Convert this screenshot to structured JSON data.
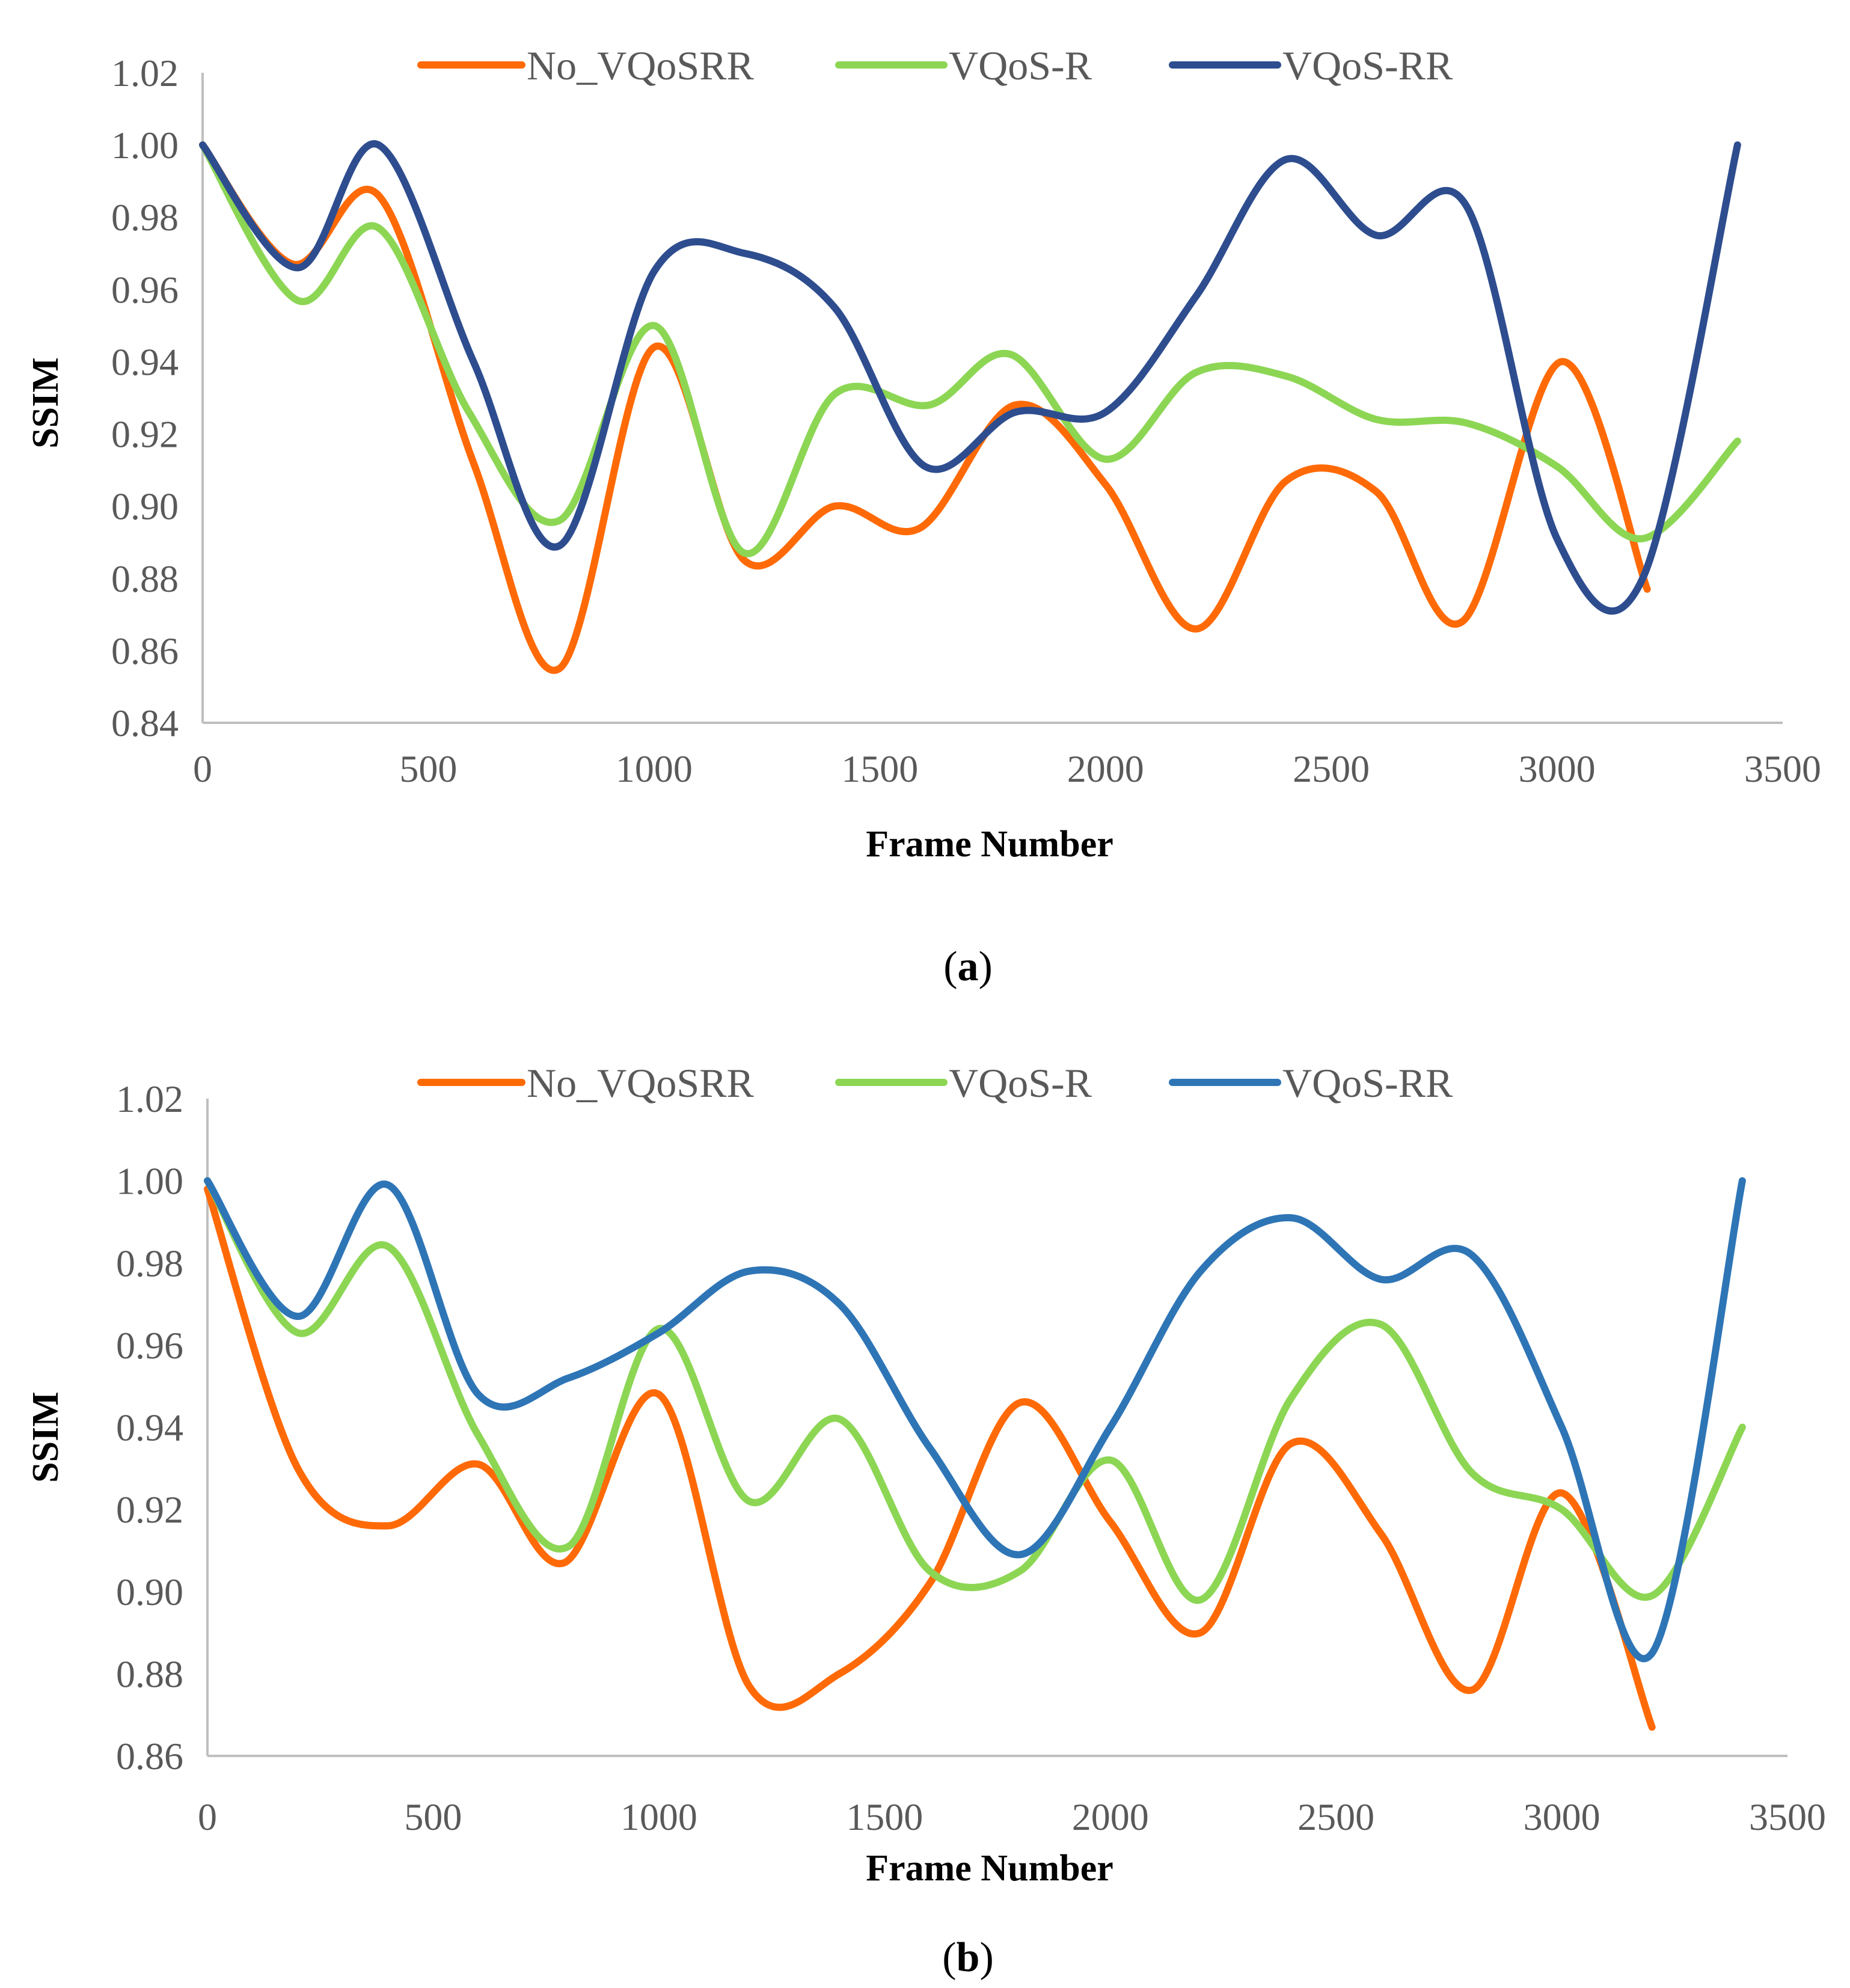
{
  "figure": {
    "caption_a": "a",
    "caption_b": "b"
  },
  "chart_data": [
    {
      "id": "a",
      "type": "line",
      "title": "",
      "xlabel": "Frame Number",
      "ylabel": "SSIM",
      "xlim": [
        0,
        3500
      ],
      "ylim": [
        0.84,
        1.02
      ],
      "xticks": [
        0,
        500,
        1000,
        1500,
        2000,
        2500,
        3000,
        3500
      ],
      "yticks": [
        0.84,
        0.86,
        0.88,
        0.9,
        0.92,
        0.94,
        0.96,
        0.98,
        1.0,
        1.02
      ],
      "ytick_labels": [
        "0.84",
        "0.86",
        "0.88",
        "0.90",
        "0.92",
        "0.94",
        "0.96",
        "0.98",
        "1.00",
        "1.02"
      ],
      "legend_position": "top",
      "grid": false,
      "series": [
        {
          "name": "No_VQoSRR",
          "color": "#FF6A06",
          "x": [
            0,
            200,
            390,
            600,
            790,
            1000,
            1200,
            1400,
            1590,
            1800,
            2000,
            2200,
            2400,
            2600,
            2790,
            3010,
            3200
          ],
          "y": [
            1.0,
            0.967,
            0.986,
            0.912,
            0.855,
            0.944,
            0.885,
            0.9,
            0.894,
            0.928,
            0.906,
            0.866,
            0.907,
            0.904,
            0.868,
            0.94,
            0.877
          ]
        },
        {
          "name": "VQoS-R",
          "color": "#8CD654",
          "x": [
            0,
            210,
            390,
            590,
            790,
            1000,
            1200,
            1400,
            1610,
            1790,
            2000,
            2200,
            2400,
            2600,
            2800,
            3000,
            3190,
            3400
          ],
          "y": [
            1.0,
            0.957,
            0.977,
            0.926,
            0.896,
            0.95,
            0.887,
            0.931,
            0.928,
            0.942,
            0.913,
            0.937,
            0.936,
            0.924,
            0.923,
            0.911,
            0.891,
            0.918
          ]
        },
        {
          "name": "VQoS-RR",
          "color": "#2E4D8F",
          "x": [
            0,
            210,
            390,
            600,
            790,
            1000,
            1200,
            1400,
            1600,
            1800,
            2000,
            2200,
            2400,
            2600,
            2800,
            3000,
            3190,
            3400
          ],
          "y": [
            1.0,
            0.966,
            1.0,
            0.94,
            0.889,
            0.965,
            0.97,
            0.955,
            0.911,
            0.926,
            0.926,
            0.958,
            0.996,
            0.975,
            0.983,
            0.891,
            0.88,
            1.0
          ]
        }
      ]
    },
    {
      "id": "b",
      "type": "line",
      "title": "",
      "xlabel": "Frame Number",
      "ylabel": "SSIM",
      "xlim": [
        0,
        3500
      ],
      "ylim": [
        0.86,
        1.02
      ],
      "xticks": [
        0,
        500,
        1000,
        1500,
        2000,
        2500,
        3000,
        3500
      ],
      "yticks": [
        0.86,
        0.88,
        0.9,
        0.92,
        0.94,
        0.96,
        0.98,
        1.0,
        1.02
      ],
      "ytick_labels": [
        "0.86",
        "0.88",
        "0.90",
        "0.92",
        "0.94",
        "0.96",
        "0.98",
        "1.00",
        "1.02"
      ],
      "legend_position": "top",
      "grid": false,
      "series": [
        {
          "name": "No_VQoSRR",
          "color": "#FF6A06",
          "x": [
            0,
            200,
            400,
            600,
            790,
            1000,
            1200,
            1400,
            1600,
            1800,
            2000,
            2200,
            2400,
            2600,
            2800,
            3000,
            3200
          ],
          "y": [
            0.998,
            0.93,
            0.916,
            0.931,
            0.907,
            0.948,
            0.877,
            0.88,
            0.902,
            0.946,
            0.917,
            0.89,
            0.936,
            0.914,
            0.876,
            0.924,
            0.867
          ]
        },
        {
          "name": "VQoS-R",
          "color": "#8CD654",
          "x": [
            0,
            200,
            400,
            600,
            800,
            1000,
            1200,
            1400,
            1600,
            1800,
            2000,
            2200,
            2400,
            2600,
            2800,
            3000,
            3200,
            3400
          ],
          "y": [
            1.0,
            0.963,
            0.984,
            0.938,
            0.911,
            0.964,
            0.922,
            0.942,
            0.905,
            0.905,
            0.932,
            0.898,
            0.947,
            0.965,
            0.929,
            0.92,
            0.899,
            0.94
          ]
        },
        {
          "name": "VQoS-RR",
          "color": "#2E75B6",
          "x": [
            0,
            200,
            400,
            600,
            800,
            1000,
            1200,
            1400,
            1600,
            1800,
            2000,
            2200,
            2400,
            2600,
            2800,
            3000,
            3200,
            3400
          ],
          "y": [
            1.0,
            0.967,
            0.999,
            0.948,
            0.952,
            0.963,
            0.978,
            0.97,
            0.935,
            0.909,
            0.94,
            0.978,
            0.991,
            0.976,
            0.982,
            0.94,
            0.885,
            1.0
          ]
        }
      ]
    }
  ]
}
